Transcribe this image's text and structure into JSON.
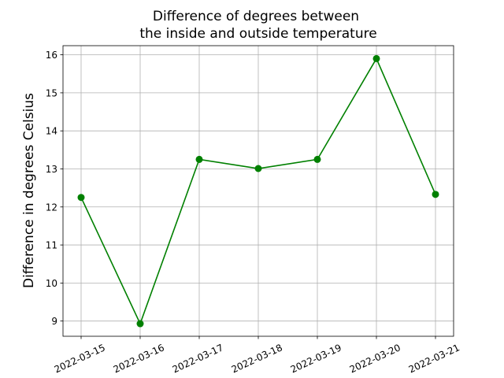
{
  "chart_data": {
    "type": "line",
    "title": "Difference of degrees between\nthe inside and outside temperature",
    "title_lines": [
      "Difference of degrees between",
      "the inside and outside temperature"
    ],
    "xlabel": "",
    "ylabel": "Difference in degrees Celsius",
    "x": [
      "2022-03-15",
      "2022-03-16",
      "2022-03-17",
      "2022-03-18",
      "2022-03-19",
      "2022-03-20",
      "2022-03-21"
    ],
    "series": [
      {
        "values": [
          12.25,
          8.93,
          13.25,
          13.01,
          13.25,
          15.9,
          12.33
        ],
        "color": "#008000"
      }
    ],
    "yticks": [
      9,
      10,
      11,
      12,
      13,
      14,
      15,
      16
    ],
    "ylim": [
      8.6,
      16.24
    ],
    "grid": true,
    "marker": "circle"
  }
}
